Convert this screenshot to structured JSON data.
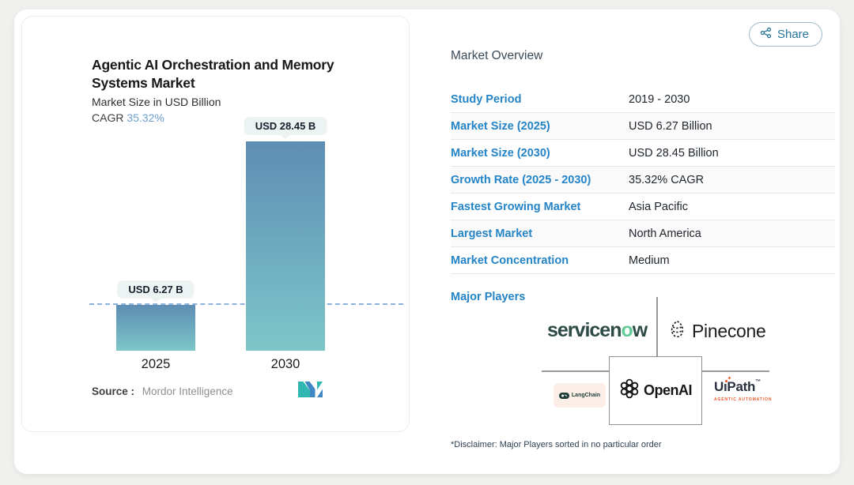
{
  "share": {
    "label": "Share"
  },
  "chart_data": {
    "type": "bar",
    "title": "Agentic AI Orchestration and Memory Systems Market",
    "subtitle": "Market Size in USD Billion",
    "cagr_label": "CAGR",
    "cagr_value": "35.32%",
    "categories": [
      "2025",
      "2030"
    ],
    "values": [
      6.27,
      28.45
    ],
    "bar_labels": [
      "USD 6.27 B",
      "USD 28.45 B"
    ],
    "ylabel": "Market Size in USD Billion",
    "ylim": [
      0,
      28.45
    ],
    "reference_line": "dashed line at 2025 value (6.27)",
    "legend": "none",
    "source_label": "Source :",
    "source": "Mordor Intelligence",
    "colors": {
      "bar_top": "#5e8db4",
      "bar_bottom": "#7dc6c9",
      "dash_line": "#8cb2da",
      "label_pill": "#edf2f2"
    }
  },
  "overview": {
    "title": "Market Overview",
    "rows": [
      {
        "label": "Study Period",
        "value": "2019 - 2030"
      },
      {
        "label": "Market Size (2025)",
        "value": "USD 6.27 Billion"
      },
      {
        "label": "Market Size (2030)",
        "value": "USD 28.45 Billion"
      },
      {
        "label": "Growth Rate (2025 - 2030)",
        "value": "35.32% CAGR"
      },
      {
        "label": "Fastest Growing Market",
        "value": "Asia Pacific"
      },
      {
        "label": "Largest Market",
        "value": "North America"
      },
      {
        "label": "Market Concentration",
        "value": "Medium"
      }
    ],
    "major_players_label": "Major Players",
    "players": {
      "servicenow": {
        "pre": "servicen",
        "o": "o",
        "post": "w"
      },
      "pinecone": "Pinecone",
      "langchain": "LangChain",
      "openai": "OpenAI",
      "uipath": {
        "pre": "U",
        "i": "ı",
        "post": "Path",
        "tm": "™",
        "tagline": "AGENTIC AUTOMATION"
      }
    },
    "disclaimer": "*Disclaimer: Major Players sorted in no particular order",
    "label_color": "#2484c6"
  }
}
